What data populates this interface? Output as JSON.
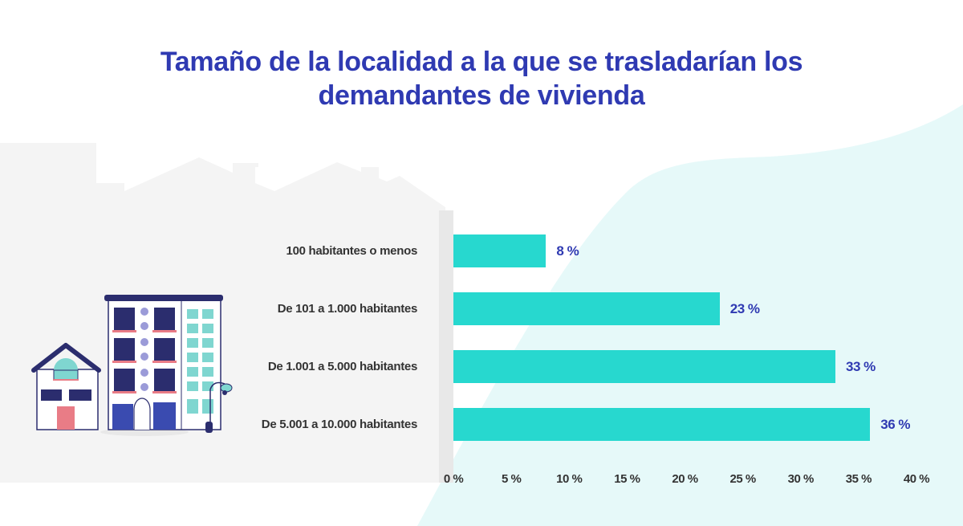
{
  "title": {
    "line1": "Tamaño de la localidad a la que se trasladarían los",
    "line2": "demandantes de vivienda"
  },
  "colors": {
    "title": "#2f3ab2",
    "bar": "#27d8cf",
    "value_label": "#2f3ab2",
    "axis_text": "#333333",
    "panel_bg": "#f4f4f4",
    "blob_bg": "#e6f9f9"
  },
  "chart_data": {
    "type": "bar",
    "orientation": "horizontal",
    "title": "Tamaño de la localidad a la que se trasladarían los demandantes de vivienda",
    "categories": [
      "100 habitantes o menos",
      "De 101 a 1.000 habitantes",
      "De 1.001 a 5.000 habitantes",
      "De 5.001 a 10.000 habitantes"
    ],
    "values": [
      8,
      23,
      33,
      36
    ],
    "value_labels": [
      "8 %",
      "23 %",
      "33 %",
      "36 %"
    ],
    "xlabel": "",
    "ylabel": "",
    "xlim": [
      0,
      40
    ],
    "x_ticks": [
      "0 %",
      "5 %",
      "10 %",
      "15 %",
      "20 %",
      "25 %",
      "30 %",
      "35 %",
      "40 %"
    ],
    "grid": false,
    "legend": null,
    "unit": "%"
  }
}
